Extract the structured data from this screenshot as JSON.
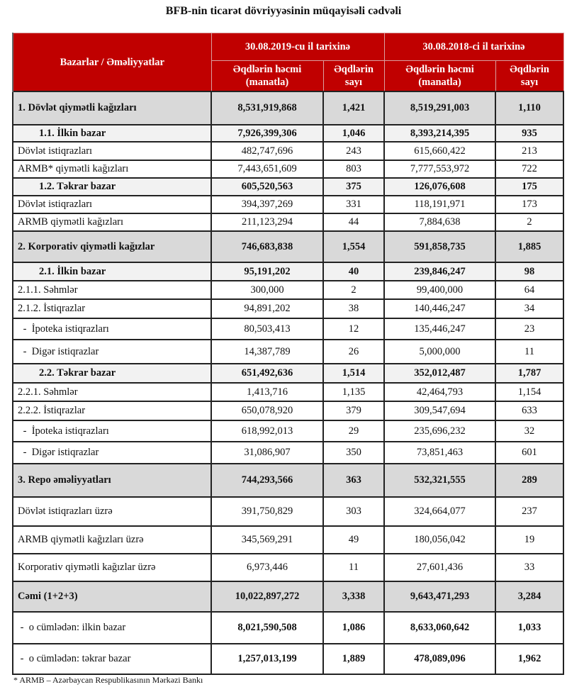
{
  "title": "BFB-nin ticarət dövriyyəsinin müqayisəli cədvəli",
  "header": {
    "col_label": "Bazarlar / Əməliyyatlar",
    "period_2019": "30.08.2019-cu il tarixinə",
    "period_2018": "30.08.2018-ci il tarixinə",
    "volume_line1": "Əqdlərin həcmi",
    "volume_line2": "(manatla)",
    "count_line1": "Əqdlərin",
    "count_line2": "sayı"
  },
  "colors": {
    "header_bg": "#c00000",
    "group_bg": "#d9d9d9",
    "sub_bg": "#f2f2f2"
  },
  "rows": [
    {
      "type": "group",
      "label": "1. Dövlət qiymətli kağızları",
      "v2019": "8,531,919,868",
      "c2019": "1,421",
      "v2018": "8,519,291,003",
      "c2018": "1,110"
    },
    {
      "type": "sub",
      "label": "1.1. İlkin bazar",
      "v2019": "7,926,399,306",
      "c2019": "1,046",
      "v2018": "8,393,214,395",
      "c2018": "935"
    },
    {
      "type": "normal",
      "label": "Dövlət istiqrazları",
      "v2019": "482,747,696",
      "c2019": "243",
      "v2018": "615,660,422",
      "c2018": "213"
    },
    {
      "type": "normal",
      "label": "ARMB* qiymətli kağızları",
      "v2019": "7,443,651,609",
      "c2019": "803",
      "v2018": "7,777,553,972",
      "c2018": "722"
    },
    {
      "type": "sub",
      "label": "1.2. Təkrar bazar",
      "v2019": "605,520,563",
      "c2019": "375",
      "v2018": "126,076,608",
      "c2018": "175"
    },
    {
      "type": "normal",
      "label": "Dövlət istiqrazları",
      "v2019": "394,397,269",
      "c2019": "331",
      "v2018": "118,191,971",
      "c2018": "173"
    },
    {
      "type": "normal",
      "label": "ARMB qiymətli kağızları",
      "v2019": "211,123,294",
      "c2019": "44",
      "v2018": "7,884,638",
      "c2018": "2"
    },
    {
      "type": "group",
      "label": "2. Korporativ qiymətli kağızlar",
      "v2019": "746,683,838",
      "c2019": "1,554",
      "v2018": "591,858,735",
      "c2018": "1,885"
    },
    {
      "type": "sub",
      "label": "2.1. İlkin bazar",
      "v2019": "95,191,202",
      "c2019": "40",
      "v2018": "239,846,247",
      "c2018": "98"
    },
    {
      "type": "normal",
      "label": "2.1.1. Səhmlər",
      "v2019": "300,000",
      "c2019": "2",
      "v2018": "99,400,000",
      "c2018": "64"
    },
    {
      "type": "normal",
      "label": "2.1.2. İstiqrazlar",
      "v2019": "94,891,202",
      "c2019": "38",
      "v2018": "140,446,247",
      "c2018": "34"
    },
    {
      "type": "dash",
      "label": " -  İpoteka istiqrazları",
      "v2019": "80,503,413",
      "c2019": "12",
      "v2018": "135,446,247",
      "c2018": "23"
    },
    {
      "type": "dash",
      "label": " -  Digər istiqrazlar",
      "v2019": "14,387,789",
      "c2019": "26",
      "v2018": "5,000,000",
      "c2018": "11"
    },
    {
      "type": "sub",
      "label": "2.2. Təkrar bazar",
      "v2019": "651,492,636",
      "c2019": "1,514",
      "v2018": "352,012,487",
      "c2018": "1,787"
    },
    {
      "type": "normal",
      "label": "2.2.1. Səhmlər",
      "v2019": "1,413,716",
      "c2019": "1,135",
      "v2018": "42,464,793",
      "c2018": "1,154"
    },
    {
      "type": "normal",
      "label": "2.2.2. İstiqrazlar",
      "v2019": "650,078,920",
      "c2019": "379",
      "v2018": "309,547,694",
      "c2018": "633"
    },
    {
      "type": "dash",
      "label": " -  İpoteka istiqrazları",
      "v2019": "618,992,013",
      "c2019": "29",
      "v2018": "235,696,232",
      "c2018": "32"
    },
    {
      "type": "dash",
      "label": " -  Digər istiqrazlar",
      "v2019": "31,086,907",
      "c2019": "350",
      "v2018": "73,851,463",
      "c2018": "601"
    },
    {
      "type": "group",
      "label": "3. Repo əməliyyatları",
      "v2019": "744,293,566",
      "c2019": "363",
      "v2018": "532,321,555",
      "c2018": "289"
    },
    {
      "type": "normal",
      "label": "Dövlət istiqrazları üzrə",
      "v2019": "391,750,829",
      "c2019": "303",
      "v2018": "324,664,077",
      "c2018": "237"
    },
    {
      "type": "normal",
      "label": "ARMB qiymətli kağızları üzrə",
      "v2019": "345,569,291",
      "c2019": "49",
      "v2018": "180,056,042",
      "c2018": "19"
    },
    {
      "type": "normal",
      "label": "Korporativ qiymətli kağızlar üzrə",
      "v2019": "6,973,446",
      "c2019": "11",
      "v2018": "27,601,436",
      "c2018": "33"
    },
    {
      "type": "group",
      "label": "Cəmi (1+2+3)",
      "v2019": "10,022,897,272",
      "c2019": "3,338",
      "v2018": "9,643,471,293",
      "c2018": "3,284"
    },
    {
      "type": "boldrow",
      "label": " -  o cümlədən: ilkin bazar",
      "v2019": "8,021,590,508",
      "c2019": "1,086",
      "v2018": "8,633,060,642",
      "c2018": "1,033"
    },
    {
      "type": "boldrow",
      "label": " -  o cümlədən: təkrar bazar",
      "v2019": "1,257,013,199",
      "c2019": "1,889",
      "v2018": "478,089,096",
      "c2018": "1,962"
    }
  ],
  "footnote": "* ARMB – Azərbaycan Respublikasının Mərkəzi Bankı"
}
